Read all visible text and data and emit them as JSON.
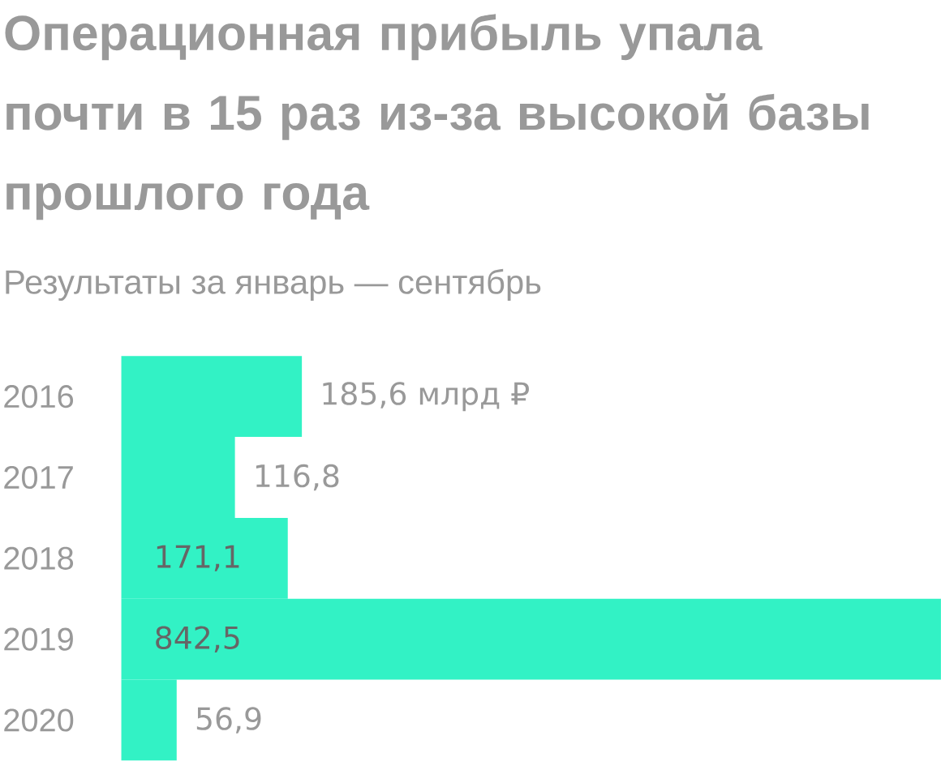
{
  "chart_data": {
    "type": "bar",
    "orientation": "horizontal",
    "title": "Операционная прибыль упала почти в 15 раз из-за высокой базы прошлого года",
    "subtitle": "Результаты за январь — сентябрь",
    "categories": [
      "2016",
      "2017",
      "2018",
      "2019",
      "2020"
    ],
    "values": [
      185.6,
      116.8,
      171.1,
      842.5,
      56.9
    ],
    "value_labels": [
      "185,6 млрд ₽",
      "116,8",
      "171,1",
      "842,5",
      "56,9"
    ],
    "color": "#32f2c5"
  }
}
